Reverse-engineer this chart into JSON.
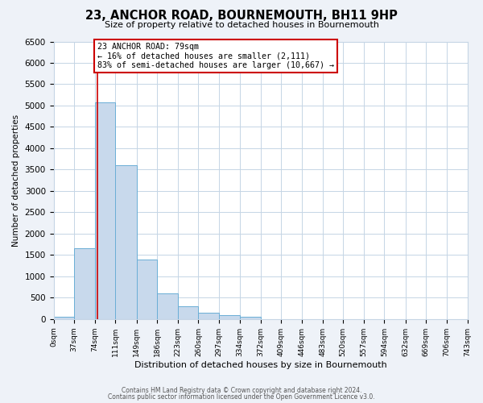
{
  "title": "23, ANCHOR ROAD, BOURNEMOUTH, BH11 9HP",
  "subtitle": "Size of property relative to detached houses in Bournemouth",
  "xlabel": "Distribution of detached houses by size in Bournemouth",
  "ylabel": "Number of detached properties",
  "bin_edges": [
    0,
    37,
    74,
    111,
    149,
    186,
    223,
    260,
    297,
    334,
    372,
    409,
    446,
    483,
    520,
    557,
    594,
    632,
    669,
    706,
    743
  ],
  "bin_counts": [
    50,
    1650,
    5080,
    3600,
    1400,
    610,
    290,
    145,
    100,
    60,
    0,
    0,
    0,
    0,
    0,
    0,
    0,
    0,
    0,
    0
  ],
  "bar_color": "#c8d9ec",
  "bar_edge_color": "#6aaed6",
  "property_size": 79,
  "red_line_color": "#cc0000",
  "annotation_box_color": "#ffffff",
  "annotation_box_edge": "#cc0000",
  "annotation_line1": "23 ANCHOR ROAD: 79sqm",
  "annotation_line2": "← 16% of detached houses are smaller (2,111)",
  "annotation_line3": "83% of semi-detached houses are larger (10,667) →",
  "ylim": [
    0,
    6500
  ],
  "yticks": [
    0,
    500,
    1000,
    1500,
    2000,
    2500,
    3000,
    3500,
    4000,
    4500,
    5000,
    5500,
    6000,
    6500
  ],
  "tick_labels": [
    "0sqm",
    "37sqm",
    "74sqm",
    "111sqm",
    "149sqm",
    "186sqm",
    "223sqm",
    "260sqm",
    "297sqm",
    "334sqm",
    "372sqm",
    "409sqm",
    "446sqm",
    "483sqm",
    "520sqm",
    "557sqm",
    "594sqm",
    "632sqm",
    "669sqm",
    "706sqm",
    "743sqm"
  ],
  "footer1": "Contains HM Land Registry data © Crown copyright and database right 2024.",
  "footer2": "Contains public sector information licensed under the Open Government Licence v3.0.",
  "bg_color": "#eef2f8",
  "plot_bg_color": "#ffffff"
}
